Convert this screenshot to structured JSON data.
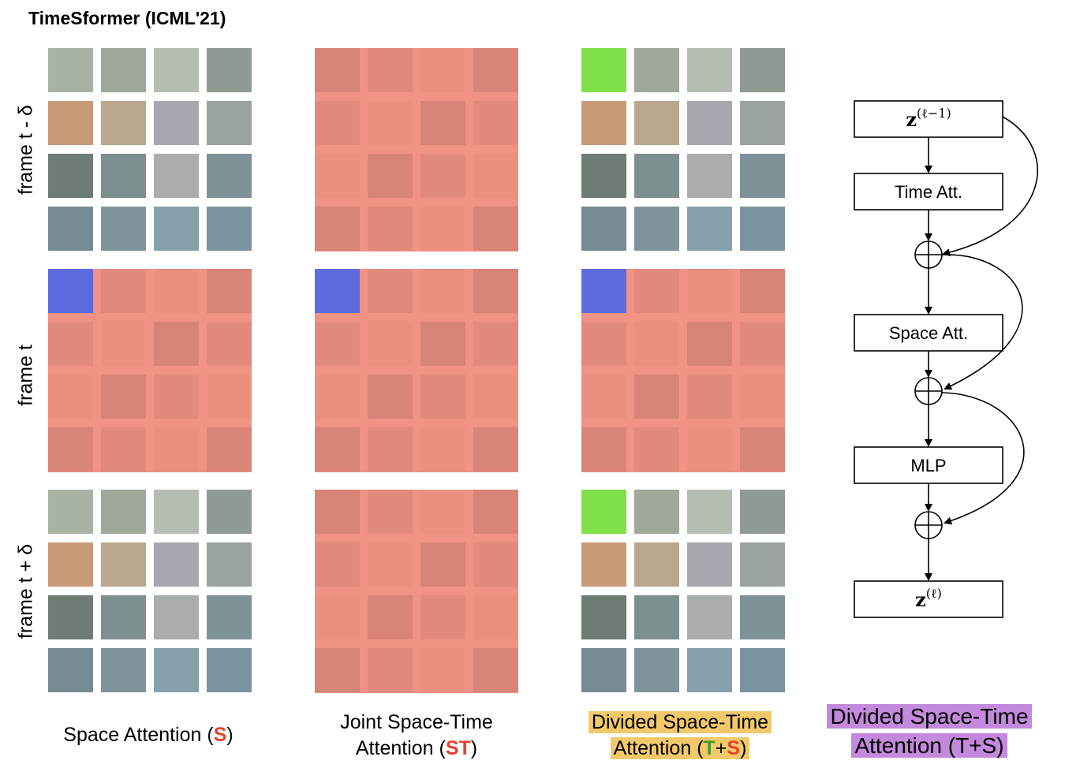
{
  "title": "TimeSformer (ICML'21)",
  "row_labels": [
    "frame t - δ",
    "frame t",
    "frame t + δ"
  ],
  "captions": {
    "space": {
      "pre": "Space Attention (",
      "code": "S",
      "post": ")"
    },
    "joint": {
      "line1": "Joint Space-Time",
      "pre": "Attention (",
      "code": "ST",
      "post": ")"
    },
    "divided": {
      "line1": "Divided Space-Time",
      "pre": "Attention (",
      "t": "T",
      "plus": "+",
      "s": "S",
      "post": ")"
    },
    "block": {
      "line1": "Divided Space-Time",
      "line2": "Attention (T+S)"
    }
  },
  "flow": {
    "input_base": "z",
    "input_sup": "(ℓ−1)",
    "time_att": "Time Att.",
    "space_att": "Space Att.",
    "mlp": "MLP",
    "output_base": "z",
    "output_sup": "(ℓ)"
  },
  "colors": {
    "attended": "#f09384",
    "query": "#5e6be0",
    "time_neighbor": "#7fe04a",
    "caption_red": "#e8402c",
    "caption_green": "#3f9a2a",
    "highlight_yellow": "#f2c96a",
    "highlight_purple": "#c389dc"
  }
}
